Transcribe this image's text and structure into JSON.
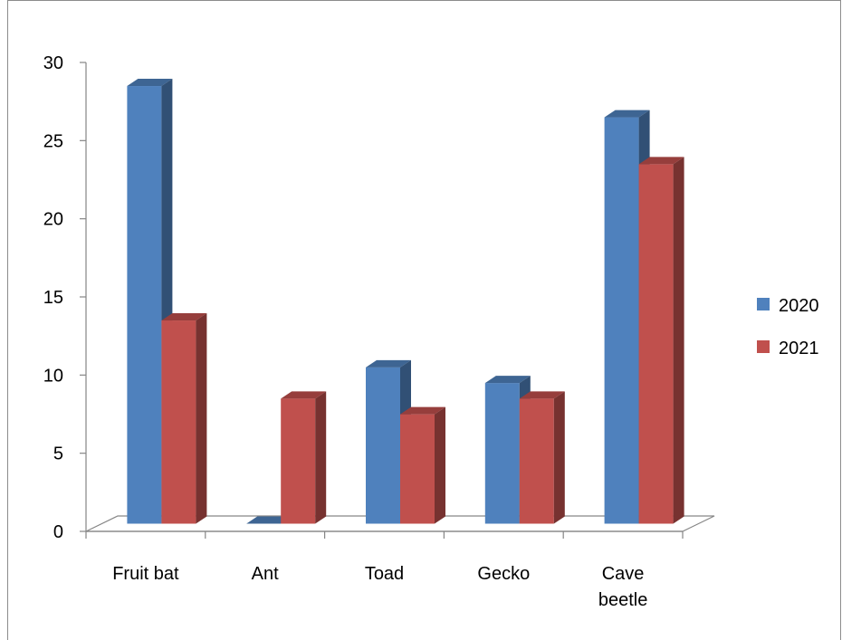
{
  "chart_data": {
    "type": "bar",
    "title": "",
    "xlabel": "",
    "ylabel": "",
    "categories": [
      [
        "Fruit bat"
      ],
      [
        "Ant"
      ],
      [
        "Toad"
      ],
      [
        "Gecko"
      ],
      [
        "Cave",
        "beetle"
      ]
    ],
    "series": [
      {
        "name": "2020",
        "values": [
          28,
          0,
          10,
          9,
          26
        ],
        "color": "#4f81bd"
      },
      {
        "name": "2021",
        "values": [
          13,
          8,
          7,
          8,
          23
        ],
        "color": "#c0504d"
      }
    ],
    "ylim": [
      0,
      30
    ],
    "yticks": [
      "0",
      "5",
      "10",
      "15",
      "20",
      "25",
      "30"
    ],
    "grid": false,
    "legend_position": "right",
    "style": "3d-clustered-column"
  }
}
